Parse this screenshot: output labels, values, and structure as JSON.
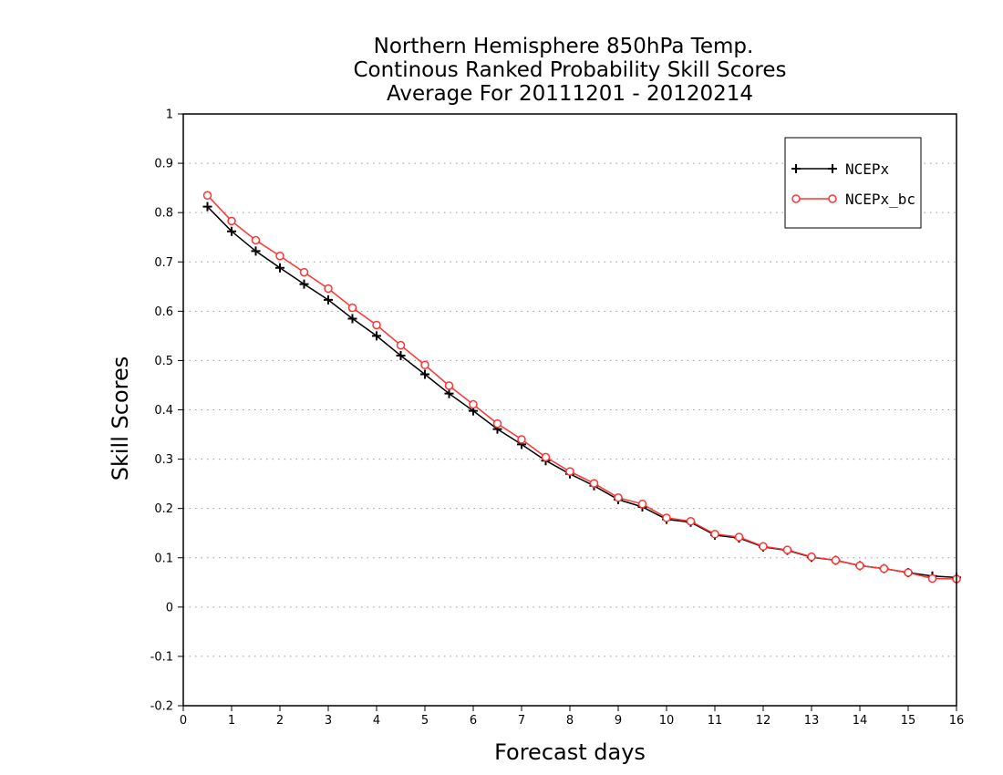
{
  "chart_data": {
    "type": "line",
    "title_lines": [
      "Northern Hemisphere 850hPa Temp.",
      "Continous Ranked Probability Skill Scores",
      "Average For 20111201 - 20120214"
    ],
    "xlabel": "Forecast days",
    "ylabel": "Skill Scores",
    "xlim": [
      0,
      16
    ],
    "ylim": [
      -0.2,
      1
    ],
    "x_ticks": [
      0,
      1,
      2,
      3,
      4,
      5,
      6,
      7,
      8,
      9,
      10,
      11,
      12,
      13,
      14,
      15,
      16
    ],
    "y_ticks": [
      -0.2,
      -0.1,
      0,
      0.1,
      0.2,
      0.3,
      0.4,
      0.5,
      0.6,
      0.7,
      0.8,
      0.9,
      1
    ],
    "y_tick_labels": [
      "-0.2",
      "-0.1",
      "0",
      "0.1",
      "0.2",
      "0.3",
      "0.4",
      "0.5",
      "0.6",
      "0.7",
      "0.8",
      "0.9",
      "1"
    ],
    "grid": "horizontal dotted",
    "legend_position": "top-right",
    "x": [
      0.5,
      1,
      1.5,
      2,
      2.5,
      3,
      3.5,
      4,
      4.5,
      5,
      5.5,
      6,
      6.5,
      7,
      7.5,
      8,
      8.5,
      9,
      9.5,
      10,
      10.5,
      11,
      11.5,
      12,
      12.5,
      13,
      13.5,
      14,
      14.5,
      15,
      15.5,
      16
    ],
    "series": [
      {
        "name": "NCEPx",
        "color": "#000000",
        "marker": "plus",
        "values": [
          0.812,
          0.762,
          0.722,
          0.688,
          0.655,
          0.623,
          0.585,
          0.55,
          0.51,
          0.472,
          0.433,
          0.398,
          0.361,
          0.33,
          0.297,
          0.27,
          0.246,
          0.218,
          0.203,
          0.178,
          0.172,
          0.146,
          0.14,
          0.122,
          0.115,
          0.101,
          0.095,
          0.084,
          0.078,
          0.07,
          0.063,
          0.06
        ]
      },
      {
        "name": "NCEPx_bc",
        "color": "#ff3333",
        "marker": "circle",
        "values": [
          0.835,
          0.783,
          0.744,
          0.712,
          0.679,
          0.646,
          0.607,
          0.572,
          0.531,
          0.491,
          0.449,
          0.411,
          0.372,
          0.34,
          0.304,
          0.275,
          0.251,
          0.222,
          0.209,
          0.181,
          0.174,
          0.148,
          0.142,
          0.123,
          0.116,
          0.102,
          0.095,
          0.084,
          0.078,
          0.07,
          0.058,
          0.057
        ]
      }
    ]
  }
}
